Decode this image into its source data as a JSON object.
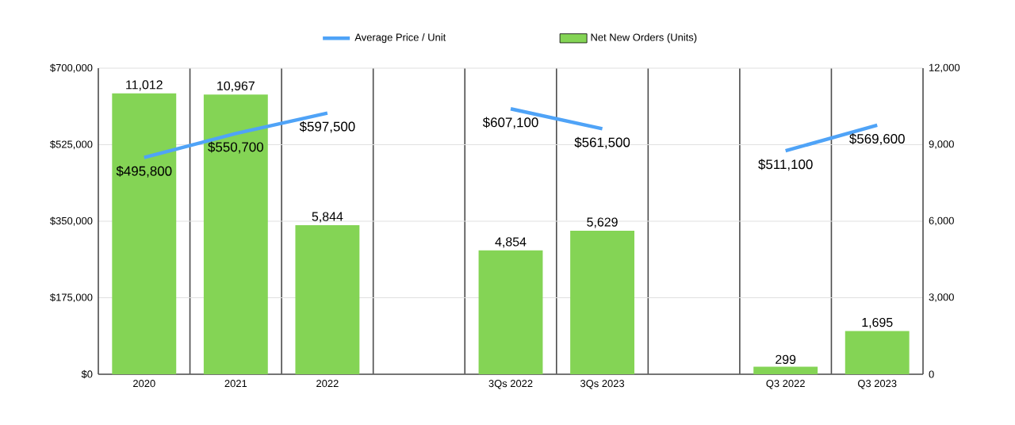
{
  "chart_data": {
    "type": "bar",
    "categories": [
      "2020",
      "2021",
      "2022",
      null,
      "3Qs 2022",
      "3Qs 2023",
      null,
      "Q3 2022",
      "Q3 2023"
    ],
    "series": [
      {
        "name": "Net New Orders (Units)",
        "axis": "y2",
        "color": "#84d455",
        "values": [
          11012,
          10967,
          5844,
          null,
          4854,
          5629,
          null,
          299,
          1695
        ],
        "value_labels": [
          "11,012",
          "10,967",
          "5,844",
          null,
          "4,854",
          "5,629",
          null,
          "299",
          "1,695"
        ]
      },
      {
        "name": "Average Price / Unit",
        "type": "line",
        "axis": "y",
        "color": "#4fa3f7",
        "values": [
          495800,
          550700,
          597500,
          null,
          607100,
          561500,
          null,
          511100,
          569600
        ],
        "value_labels": [
          "$495,800",
          "$550,700",
          "$597,500",
          null,
          "$607,100",
          "$561,500",
          null,
          "$511,100",
          "$569,600"
        ]
      }
    ],
    "ylim": [
      0,
      700000
    ],
    "yticks": [
      {
        "value": 0,
        "label": "$0"
      },
      {
        "value": 175000,
        "label": "$175,000"
      },
      {
        "value": 350000,
        "label": "$350,000"
      },
      {
        "value": 525000,
        "label": "$525,000"
      },
      {
        "value": 700000,
        "label": "$700,000"
      }
    ],
    "y2lim": [
      0,
      12000
    ],
    "y2ticks": [
      {
        "value": 0,
        "label": "0"
      },
      {
        "value": 3000,
        "label": "3,000"
      },
      {
        "value": 6000,
        "label": "6,000"
      },
      {
        "value": 9000,
        "label": "9,000"
      },
      {
        "value": 12000,
        "label": "12,000"
      }
    ],
    "grid": true,
    "legend": "top"
  }
}
